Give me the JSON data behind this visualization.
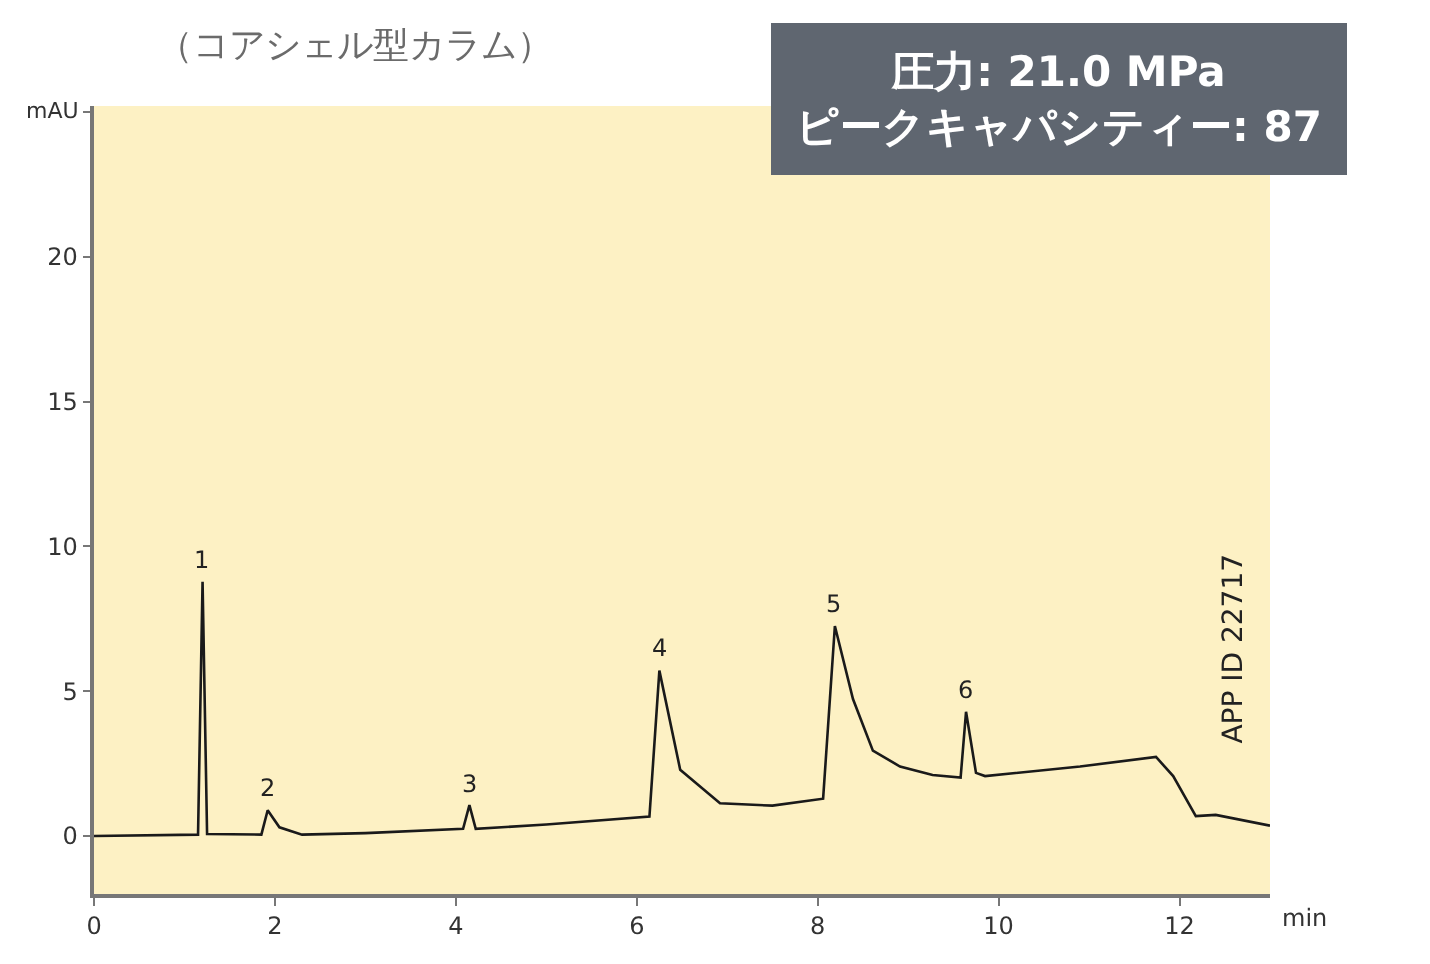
{
  "chart_data": {
    "type": "line",
    "title": "（コアシェル型カラム）",
    "xlabel": "min",
    "ylabel": "mAU",
    "x": [
      0,
      1.15,
      1.2,
      1.25,
      1.85,
      1.92,
      2.05,
      2.3,
      3.0,
      4.08,
      4.15,
      4.22,
      5.0,
      6.14,
      6.25,
      6.48,
      6.92,
      7.5,
      8.06,
      8.19,
      8.39,
      8.61,
      8.91,
      9.27,
      9.58,
      9.64,
      9.75,
      9.85,
      10.9,
      11.74,
      11.93,
      12.18,
      12.4,
      13.0
    ],
    "series": [
      {
        "color": "#1a1a1a",
        "values": [
          0,
          0.05,
          8.78,
          0.07,
          0.05,
          0.89,
          0.3,
          0.05,
          0.1,
          0.25,
          1.07,
          0.25,
          0.4,
          0.67,
          5.71,
          2.29,
          1.13,
          1.05,
          1.29,
          7.25,
          4.73,
          2.95,
          2.4,
          2.11,
          2.02,
          4.29,
          2.18,
          2.07,
          2.4,
          2.73,
          2.07,
          0.69,
          0.73,
          0.36
        ]
      }
    ],
    "xlim": [
      0,
      13
    ],
    "xticks": [
      0,
      2,
      4,
      6,
      8,
      10,
      12
    ],
    "ylim": [
      -2,
      25.2
    ],
    "yticks": [
      0,
      5,
      10,
      15,
      20,
      {
        "value": 25,
        "label": null
      }
    ],
    "grid": false,
    "legend": false,
    "marker": "none",
    "line_style": "solid",
    "annotations": [
      {
        "text": "1",
        "x": 1.2,
        "y": 8.78
      },
      {
        "text": "2",
        "x": 1.92,
        "y": 0.89
      },
      {
        "text": "3",
        "x": 4.15,
        "y": 1.07
      },
      {
        "text": "4",
        "x": 6.25,
        "y": 5.71
      },
      {
        "text": "5",
        "x": 8.19,
        "y": 7.25
      },
      {
        "text": "6",
        "x": 9.64,
        "y": 4.29
      },
      "圧力: 21.0 MPa\nピークキャパシティー: 87",
      "APP ID 22717"
    ]
  }
}
